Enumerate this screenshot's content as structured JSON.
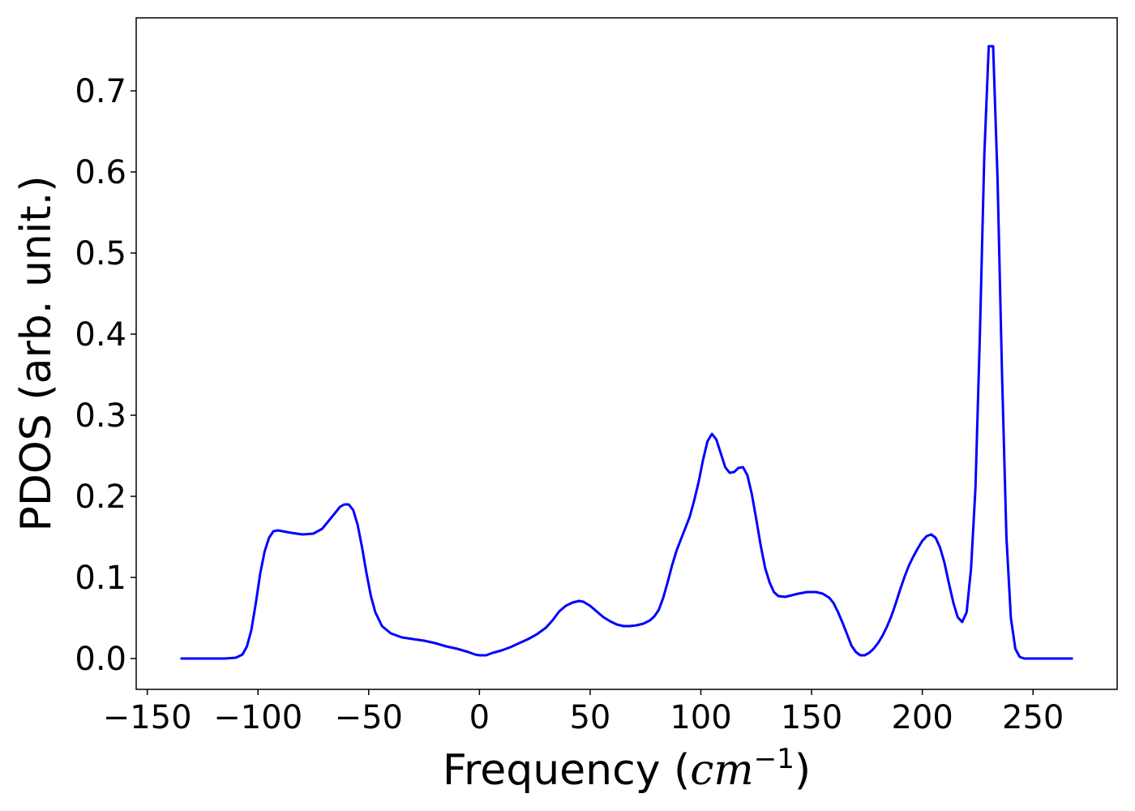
{
  "chart_data": {
    "type": "line",
    "title": "",
    "xlabel_prefix": "Frequency (",
    "xlabel_math": "cm",
    "xlabel_sup": "−1",
    "xlabel_suffix": ")",
    "ylabel": "PDOS (arb. unit.)",
    "xlim": [
      -155,
      288
    ],
    "ylim": [
      -0.038,
      0.79
    ],
    "grid": false,
    "legend": "none",
    "xticks": [
      -150,
      -100,
      -50,
      0,
      50,
      100,
      150,
      200,
      250
    ],
    "xtick_labels": [
      "−150",
      "−100",
      "−50",
      "0",
      "50",
      "100",
      "150",
      "200",
      "250"
    ],
    "yticks": [
      0.0,
      0.1,
      0.2,
      0.3,
      0.4,
      0.5,
      0.6,
      0.7
    ],
    "ytick_labels": [
      "0.0",
      "0.1",
      "0.2",
      "0.3",
      "0.4",
      "0.5",
      "0.6",
      "0.7"
    ],
    "series": [
      {
        "color": "#0000ff",
        "x": [
          -135,
          -125,
          -115,
          -110,
          -107,
          -105,
          -103,
          -101,
          -99,
          -97,
          -95,
          -93,
          -91,
          -89,
          -85,
          -80,
          -75,
          -71,
          -68,
          -65,
          -63,
          -61,
          -59,
          -57,
          -55,
          -53,
          -51,
          -49,
          -47,
          -44,
          -40,
          -35,
          -30,
          -25,
          -20,
          -15,
          -10,
          -5,
          -2,
          0,
          3,
          6,
          10,
          14,
          18,
          22,
          26,
          30,
          33,
          36,
          39,
          42,
          45,
          47,
          50,
          53,
          56,
          59,
          62,
          65,
          68,
          71,
          74,
          77,
          79,
          81,
          83,
          85,
          87,
          89,
          91,
          93,
          95,
          97,
          99,
          101,
          103,
          105,
          107,
          109,
          111,
          113,
          115,
          117,
          119,
          121,
          123,
          125,
          127,
          129,
          131,
          133,
          135,
          138,
          141,
          144,
          148,
          152,
          155,
          158,
          160,
          162,
          164,
          166,
          168,
          170,
          172,
          174,
          176,
          178,
          180,
          182,
          184,
          186,
          188,
          190,
          192,
          194,
          196,
          198,
          200,
          202,
          204,
          206,
          208,
          210,
          212,
          214,
          216,
          218,
          220,
          222,
          224,
          226,
          228,
          230,
          232,
          234,
          236,
          238,
          240,
          242,
          244,
          246,
          250,
          260,
          268
        ],
        "y": [
          0.0,
          0.0,
          0.0,
          0.001,
          0.005,
          0.015,
          0.035,
          0.068,
          0.105,
          0.132,
          0.149,
          0.157,
          0.158,
          0.157,
          0.155,
          0.153,
          0.154,
          0.16,
          0.17,
          0.18,
          0.187,
          0.19,
          0.19,
          0.183,
          0.165,
          0.137,
          0.105,
          0.077,
          0.057,
          0.04,
          0.031,
          0.026,
          0.024,
          0.022,
          0.019,
          0.015,
          0.012,
          0.008,
          0.005,
          0.004,
          0.004,
          0.007,
          0.01,
          0.014,
          0.019,
          0.024,
          0.03,
          0.038,
          0.047,
          0.058,
          0.065,
          0.069,
          0.071,
          0.07,
          0.065,
          0.058,
          0.051,
          0.046,
          0.042,
          0.04,
          0.04,
          0.041,
          0.043,
          0.047,
          0.052,
          0.06,
          0.075,
          0.094,
          0.115,
          0.133,
          0.147,
          0.161,
          0.175,
          0.195,
          0.218,
          0.245,
          0.268,
          0.277,
          0.27,
          0.253,
          0.236,
          0.229,
          0.23,
          0.235,
          0.236,
          0.226,
          0.203,
          0.172,
          0.14,
          0.112,
          0.094,
          0.082,
          0.077,
          0.076,
          0.078,
          0.08,
          0.082,
          0.082,
          0.08,
          0.075,
          0.068,
          0.057,
          0.044,
          0.03,
          0.016,
          0.008,
          0.004,
          0.004,
          0.007,
          0.012,
          0.019,
          0.028,
          0.039,
          0.052,
          0.068,
          0.085,
          0.101,
          0.115,
          0.126,
          0.136,
          0.145,
          0.151,
          0.153,
          0.149,
          0.137,
          0.118,
          0.093,
          0.069,
          0.051,
          0.045,
          0.057,
          0.11,
          0.21,
          0.4,
          0.62,
          0.755,
          0.755,
          0.59,
          0.35,
          0.15,
          0.05,
          0.012,
          0.002,
          0.0,
          0.0,
          0.0,
          0.0
        ]
      }
    ]
  }
}
